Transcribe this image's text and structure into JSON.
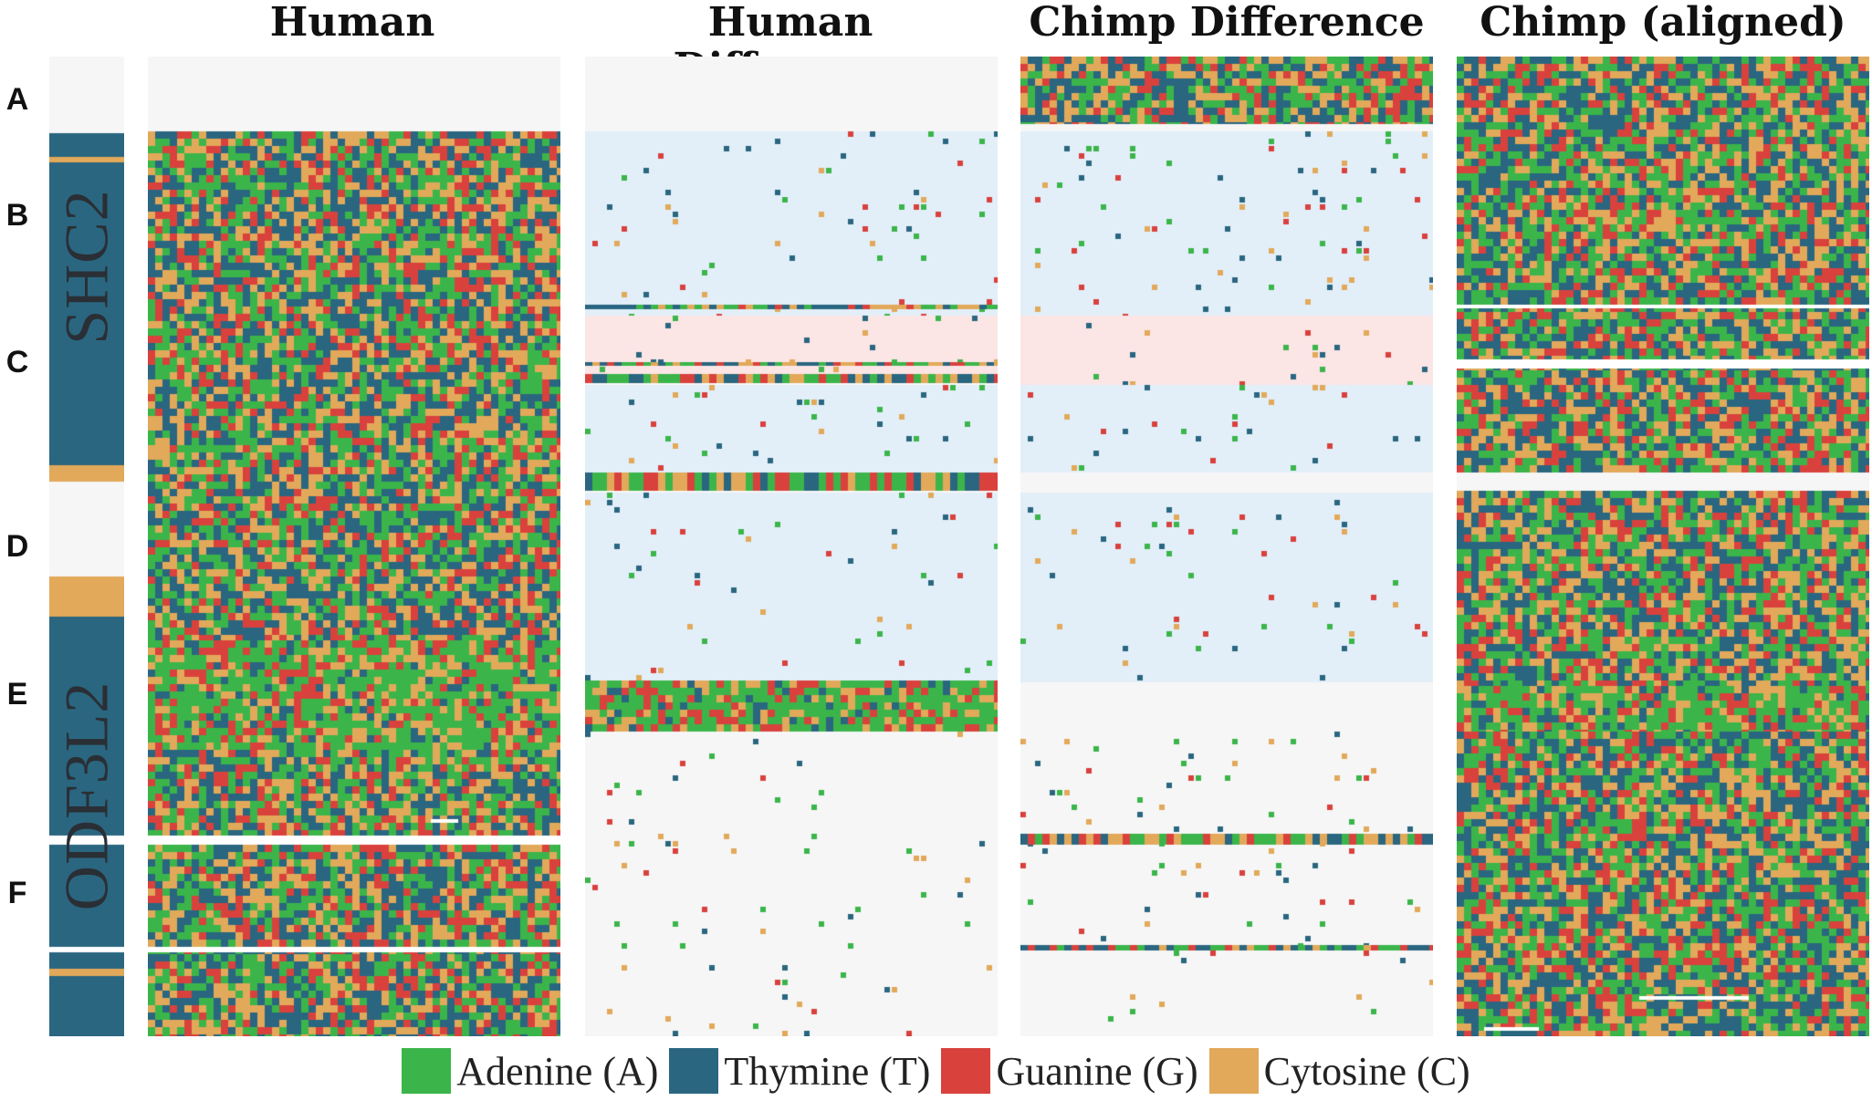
{
  "panels": {
    "human": "Human",
    "human_diff": "Human Difference",
    "chimp_diff": "Chimp Difference",
    "chimp_aligned": "Chimp (aligned)"
  },
  "row_labels": [
    "A",
    "B",
    "C",
    "D",
    "E",
    "F"
  ],
  "genes": {
    "shc2": "SHC2",
    "odf3l2": "ODF3L2"
  },
  "legend": [
    {
      "label": "Adenine (A)",
      "color": "#3bb54a"
    },
    {
      "label": "Thymine (T)",
      "color": "#2a6680"
    },
    {
      "label": "Guanine (G)",
      "color": "#d9413d"
    },
    {
      "label": "Cytosine (C)",
      "color": "#e2a95a"
    }
  ],
  "colors": {
    "adenine": "#3bb54a",
    "thymine": "#2a6680",
    "guanine": "#d9413d",
    "cytosine": "#e2a95a",
    "panel_bg": "#f6f6f6",
    "match_blue": "#e2eff9",
    "match_pink": "#fbe5e5",
    "blank": "#ffffff"
  }
}
